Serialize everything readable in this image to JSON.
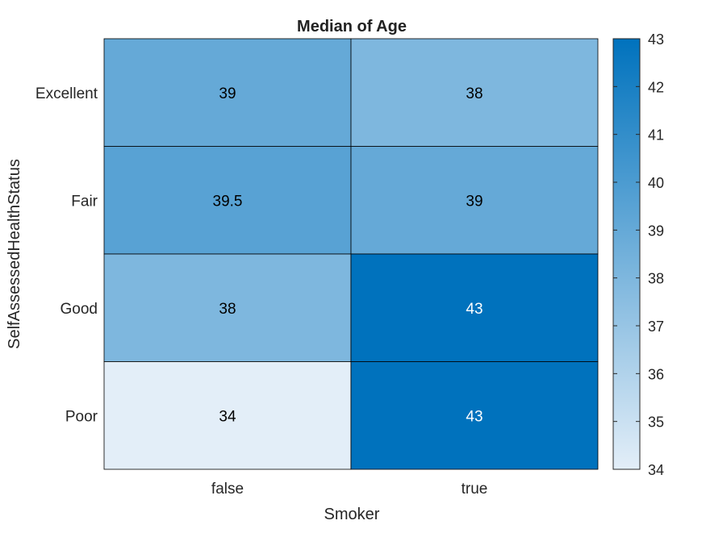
{
  "chart_data": {
    "type": "heatmap",
    "title": "Median of Age",
    "xlabel": "Smoker",
    "ylabel": "SelfAssessedHealthStatus",
    "x_categories": [
      "false",
      "true"
    ],
    "y_categories": [
      "Excellent",
      "Fair",
      "Good",
      "Poor"
    ],
    "values": [
      [
        39,
        38
      ],
      [
        39.5,
        39
      ],
      [
        38,
        43
      ],
      [
        34,
        43
      ]
    ],
    "colorbar": {
      "min": 34,
      "max": 43,
      "ticks": [
        34,
        35,
        36,
        37,
        38,
        39,
        40,
        41,
        42,
        43
      ]
    },
    "colors": {
      "low": "#e3eef8",
      "high": "#0072bd",
      "dark_text": "#000000",
      "light_text": "#ffffff",
      "grid": "#000000"
    }
  }
}
